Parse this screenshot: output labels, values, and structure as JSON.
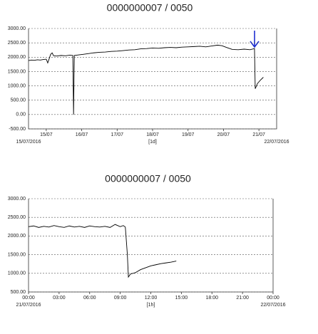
{
  "chart_data": [
    {
      "type": "line",
      "title": "0000000007 / 0050",
      "xlabel": "[1d]",
      "x_range_labels": [
        "15/07/2016",
        "22/07/2016"
      ],
      "xlim": [
        0,
        168
      ],
      "xticks": [
        {
          "value": 12,
          "label": "15/07"
        },
        {
          "value": 36,
          "label": "16/07"
        },
        {
          "value": 60,
          "label": "17/07"
        },
        {
          "value": 84,
          "label": "18/07"
        },
        {
          "value": 108,
          "label": "19/07"
        },
        {
          "value": 132,
          "label": "20/07"
        },
        {
          "value": 156,
          "label": "21/07"
        }
      ],
      "ylim": [
        -500,
        3000
      ],
      "yticks": [
        {
          "value": -500,
          "label": "-500.00"
        },
        {
          "value": 0,
          "label": "0.00"
        },
        {
          "value": 500,
          "label": "500.00"
        },
        {
          "value": 1000,
          "label": "1000.00"
        },
        {
          "value": 1500,
          "label": "1500.00"
        },
        {
          "value": 2000,
          "label": "2000.00"
        },
        {
          "value": 2500,
          "label": "2500.00"
        },
        {
          "value": 3000,
          "label": "3000.00"
        }
      ],
      "grid": true,
      "series": [
        {
          "color": "#000000",
          "x": [
            0,
            2,
            4,
            6,
            8,
            10,
            12,
            13,
            14,
            15,
            16,
            17,
            19,
            22,
            25,
            28,
            30,
            30.5,
            31,
            34,
            37,
            40,
            44,
            48,
            52,
            56,
            60,
            64,
            68,
            72,
            76,
            80,
            84,
            88,
            92,
            96,
            100,
            104,
            108,
            112,
            116,
            120,
            124,
            128,
            131,
            134,
            138,
            142,
            146,
            150,
            153,
            153.5,
            155,
            157,
            159
          ],
          "values": [
            1880,
            1900,
            1890,
            1910,
            1900,
            1920,
            1930,
            1800,
            1950,
            2100,
            2150,
            2050,
            2040,
            2060,
            2050,
            2070,
            2060,
            0,
            2060,
            2080,
            2100,
            2120,
            2150,
            2170,
            2180,
            2200,
            2210,
            2230,
            2250,
            2260,
            2290,
            2300,
            2320,
            2310,
            2330,
            2340,
            2330,
            2350,
            2360,
            2370,
            2380,
            2360,
            2390,
            2420,
            2400,
            2340,
            2270,
            2260,
            2280,
            2260,
            2300,
            900,
            1080,
            1200,
            1300
          ]
        }
      ]
    },
    {
      "type": "line",
      "title": "0000000007 / 0050",
      "xlabel": "[1h]",
      "x_range_labels": [
        "21/07/2016",
        "22/07/2016"
      ],
      "xlim": [
        0,
        24
      ],
      "xticks": [
        {
          "value": 0,
          "label": "00:00"
        },
        {
          "value": 3,
          "label": "03:00"
        },
        {
          "value": 6,
          "label": "06:00"
        },
        {
          "value": 9,
          "label": "09:00"
        },
        {
          "value": 12,
          "label": "12:00"
        },
        {
          "value": 15,
          "label": "15:00"
        },
        {
          "value": 18,
          "label": "18:00"
        },
        {
          "value": 21,
          "label": "21:00"
        },
        {
          "value": 24,
          "label": "00:00"
        }
      ],
      "ylim": [
        500,
        3000
      ],
      "yticks": [
        {
          "value": 500,
          "label": "500.00"
        },
        {
          "value": 1000,
          "label": "1000.00"
        },
        {
          "value": 1500,
          "label": "1500.00"
        },
        {
          "value": 2000,
          "label": "2000.00"
        },
        {
          "value": 2500,
          "label": "2500.00"
        },
        {
          "value": 3000,
          "label": "3000.00"
        }
      ],
      "grid": true,
      "series": [
        {
          "color": "#000000",
          "x": [
            0,
            0.5,
            1,
            1.5,
            2,
            2.5,
            3,
            3.5,
            4,
            4.5,
            5,
            5.5,
            6,
            6.5,
            7,
            7.5,
            8,
            8.5,
            9,
            9.3,
            9.5,
            9.7,
            9.8,
            10,
            10.5,
            11,
            11.5,
            12,
            12.5,
            13,
            13.5,
            14,
            14.5
          ],
          "values": [
            2250,
            2270,
            2230,
            2260,
            2240,
            2280,
            2250,
            2230,
            2270,
            2240,
            2260,
            2230,
            2270,
            2250,
            2240,
            2260,
            2230,
            2310,
            2250,
            2280,
            2240,
            1500,
            900,
            980,
            1020,
            1100,
            1150,
            1200,
            1230,
            1260,
            1280,
            1300,
            1330
          ]
        }
      ]
    }
  ]
}
